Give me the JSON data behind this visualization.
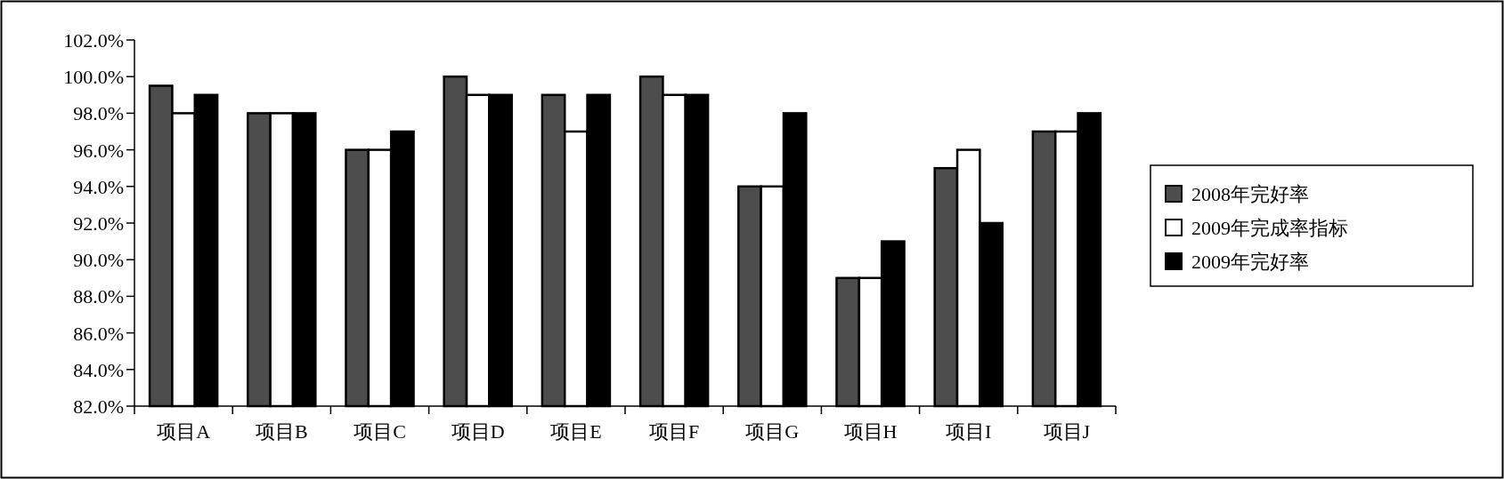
{
  "chart_data": {
    "type": "bar",
    "categories": [
      "项目A",
      "项目B",
      "项目C",
      "项目D",
      "项目E",
      "项目F",
      "项目G",
      "项目H",
      "项目I",
      "项目J"
    ],
    "series": [
      {
        "name": "2008年完好率",
        "color": "#4d4d4d",
        "values": [
          99.5,
          98,
          96,
          100,
          99,
          100,
          94,
          89,
          95,
          97
        ]
      },
      {
        "name": "2009年完成率指标",
        "color": "#ffffff",
        "values": [
          98,
          98,
          96,
          99,
          97,
          99,
          94,
          89,
          96,
          97
        ]
      },
      {
        "name": "2009年完好率",
        "color": "#000000",
        "values": [
          99,
          98,
          97,
          99,
          99,
          99,
          98,
          91,
          92,
          98
        ]
      }
    ],
    "ylim": [
      82,
      102
    ],
    "yticks": [
      {
        "value": 82,
        "label": "82.0%"
      },
      {
        "value": 84,
        "label": "84.0%"
      },
      {
        "value": 86,
        "label": "86.0%"
      },
      {
        "value": 88,
        "label": "88.0%"
      },
      {
        "value": 90,
        "label": "90.0%"
      },
      {
        "value": 92,
        "label": "92.0%"
      },
      {
        "value": 94,
        "label": "94.0%"
      },
      {
        "value": 96,
        "label": "96.0%"
      },
      {
        "value": 98,
        "label": "98.0%"
      },
      {
        "value": 100,
        "label": "100.0%"
      },
      {
        "value": 102,
        "label": "102.0%"
      }
    ],
    "legend": "right"
  }
}
